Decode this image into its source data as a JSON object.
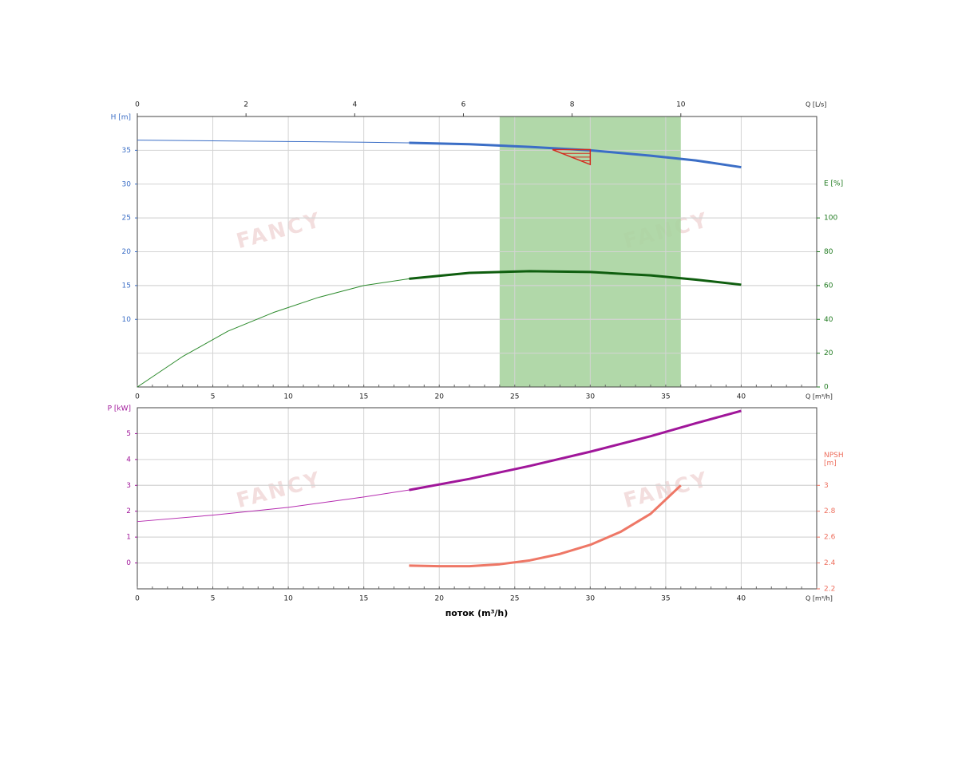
{
  "watermark": "FANCY",
  "chart_data": [
    {
      "type": "line",
      "xlabel": "Q [m³/h]",
      "xlim": [
        0,
        45
      ],
      "xticks": [
        0,
        5,
        10,
        15,
        20,
        25,
        30,
        35,
        40
      ],
      "x2label": "Q [L/s]",
      "x2lim": [
        0,
        12.5
      ],
      "x2ticks": [
        0,
        2,
        4,
        6,
        8,
        10
      ],
      "ylabel": "H [m]",
      "ylim": [
        0,
        40
      ],
      "yticks": [
        10,
        15,
        20,
        25,
        30,
        35
      ],
      "ycolor": "#3b6ec6",
      "y2label": "E [%]",
      "y2lim": [
        0,
        160
      ],
      "y2ticks": [
        0,
        20,
        40,
        60,
        80,
        100
      ],
      "y2color": "#1f7a1f",
      "grid": true,
      "highlight_range": [
        24,
        36
      ],
      "highlight_color": "#a8d4a0",
      "duty_triangle": {
        "x": [
          27.5,
          30,
          30
        ],
        "y": [
          35.1,
          35.1,
          32.9
        ],
        "color": "#d42a1e"
      },
      "series": [
        {
          "color": "#3b6ec6",
          "line_width": 1,
          "x": [
            0,
            5,
            10,
            15,
            18
          ],
          "values": [
            36.5,
            36.4,
            36.3,
            36.2,
            36.1
          ]
        },
        {
          "color": "#3b6ec6",
          "line_width": 3,
          "x": [
            18,
            22,
            26,
            30,
            34,
            37,
            40
          ],
          "values": [
            36.1,
            35.9,
            35.5,
            35.0,
            34.2,
            33.5,
            32.5
          ]
        },
        {
          "color": "#2b8a2b",
          "line_width": 1,
          "axis": "y2",
          "x": [
            0,
            3,
            6,
            9,
            12,
            15,
            18
          ],
          "values": [
            0,
            18,
            33,
            44,
            53,
            60,
            64
          ]
        },
        {
          "color": "#0f5e0f",
          "line_width": 3,
          "axis": "y2",
          "x": [
            18,
            22,
            26,
            30,
            34,
            37,
            40
          ],
          "values": [
            64,
            67.5,
            68.5,
            68,
            66,
            63.5,
            60.5
          ]
        }
      ]
    },
    {
      "type": "line",
      "xlabel": "Q [m³/h]",
      "xlim": [
        0,
        45
      ],
      "xticks": [
        0,
        5,
        10,
        15,
        20,
        25,
        30,
        35,
        40
      ],
      "axis_title": "поток (m³/h)",
      "ylabel": "P [kW]",
      "ylim": [
        -1,
        6
      ],
      "yticks": [
        0,
        1,
        2,
        3,
        4,
        5
      ],
      "ycolor": "#a0169a",
      "y2label": [
        "NPSH",
        "[m]"
      ],
      "y2lim": [
        2.2,
        3.6
      ],
      "y2ticks": [
        2.2,
        2.4,
        2.6,
        2.8,
        3
      ],
      "y2color": "#ee6f5e",
      "grid": true,
      "series": [
        {
          "color": "#b52bb0",
          "line_width": 1,
          "x": [
            0,
            5,
            10,
            15,
            18
          ],
          "values": [
            1.6,
            1.85,
            2.15,
            2.55,
            2.82
          ]
        },
        {
          "color": "#a0169a",
          "line_width": 3,
          "x": [
            18,
            22,
            26,
            30,
            34,
            37,
            40
          ],
          "values": [
            2.82,
            3.25,
            3.75,
            4.3,
            4.9,
            5.4,
            5.88
          ]
        },
        {
          "color": "#ee7766",
          "line_width": 3,
          "axis": "y2",
          "x": [
            18,
            20,
            22,
            24,
            26,
            28,
            30,
            32,
            34,
            36
          ],
          "values": [
            2.38,
            2.375,
            2.375,
            2.39,
            2.42,
            2.47,
            2.54,
            2.64,
            2.78,
            3.0
          ]
        }
      ]
    }
  ]
}
